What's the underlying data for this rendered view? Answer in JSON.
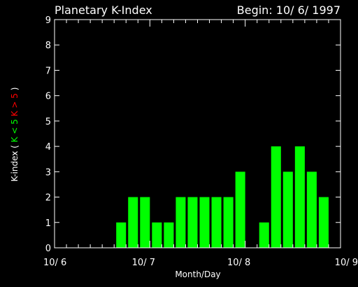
{
  "header": {
    "title": "Planetary K-Index",
    "begin": "Begin: 10/ 6/ 1997"
  },
  "colors": {
    "background": "#000000",
    "axes": "#ffffff",
    "bar_low": "#00ff00",
    "bar_high": "#ff0000"
  },
  "chart_data": {
    "type": "bar",
    "title": "Planetary K-Index",
    "subtitle": "Begin: 10/ 6/ 1997",
    "xlabel": "Month/Day",
    "ylabel_parts": [
      {
        "text": "K-index",
        "color": "#ffffff"
      },
      {
        "text": "(",
        "color": "#ffffff"
      },
      {
        "text": "K < 5",
        "color": "#00ff00"
      },
      {
        "text": "K > 5",
        "color": "#ff0000"
      },
      {
        "text": ")",
        "color": "#ffffff"
      }
    ],
    "xlim": [
      0,
      24
    ],
    "ylim": [
      0,
      9
    ],
    "yticks": [
      "0",
      "1",
      "2",
      "3",
      "4",
      "5",
      "6",
      "7",
      "8",
      "9"
    ],
    "xticks": [
      {
        "at": 0,
        "label": "10/ 6"
      },
      {
        "at": 8,
        "label": "10/ 7"
      },
      {
        "at": 16,
        "label": "10/ 8"
      },
      {
        "at": 24,
        "label": "10/ 9"
      }
    ],
    "minor_ticks_per_interval": 8,
    "interval_hours": 3,
    "threshold": 5,
    "values": [
      null,
      null,
      null,
      null,
      null,
      1,
      2,
      2,
      1,
      1,
      2,
      2,
      2,
      2,
      2,
      3,
      null,
      1,
      4,
      3,
      4,
      3,
      2,
      null
    ]
  }
}
